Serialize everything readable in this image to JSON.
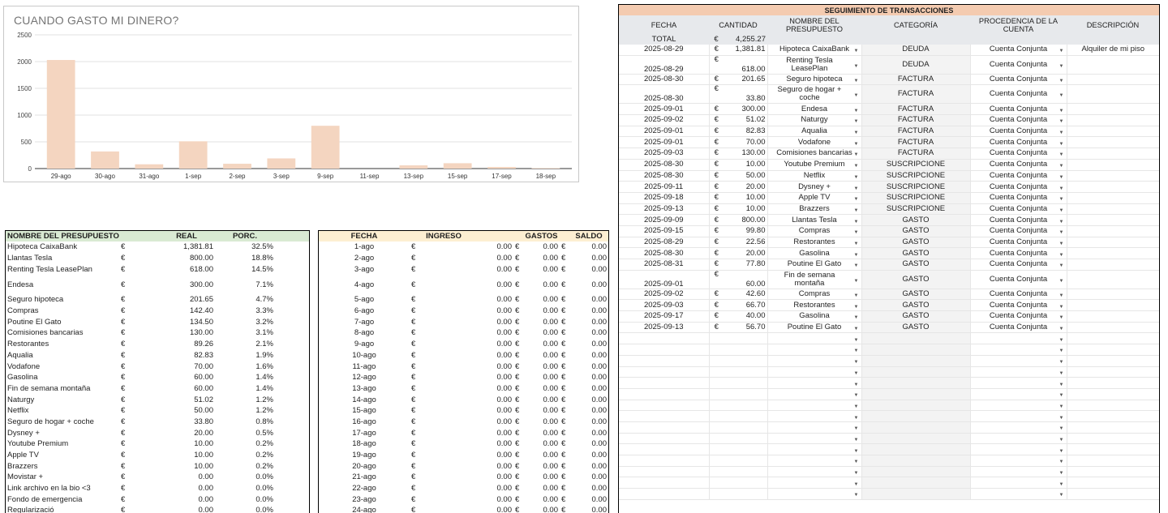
{
  "chart": {
    "title": "CUANDO GASTO MI DINERO?",
    "bar_color": "#f4d5c0",
    "chart_data": {
      "type": "bar",
      "title": "CUANDO GASTO MI DINERO?",
      "categories": [
        "29-ago",
        "30-ago",
        "31-ago",
        "1-sep",
        "2-sep",
        "3-sep",
        "9-sep",
        "11-sep",
        "13-sep",
        "15-sep",
        "17-sep",
        "18-sep"
      ],
      "values": [
        2030,
        320,
        80,
        510,
        90,
        190,
        800,
        0,
        60,
        100,
        30,
        10
      ],
      "yticks": [
        0,
        500,
        1000,
        1500,
        2000,
        2500
      ],
      "ylim": [
        0,
        2500
      ],
      "grid": true
    }
  },
  "budget": {
    "headers": [
      "NOMBRE DEL PRESUPUESTO",
      "REAL",
      "PORC."
    ],
    "currency": "€",
    "rows": [
      {
        "name": "Hipoteca CaixaBank",
        "real": "1,381.81",
        "pct": "32.5%"
      },
      {
        "name": "Llantas Tesla",
        "real": "800.00",
        "pct": "18.8%"
      },
      {
        "name": "Renting Tesla LeasePlan",
        "real": "618.00",
        "pct": "14.5%"
      },
      {
        "name": "Endesa",
        "real": "300.00",
        "pct": "7.1%",
        "tall": true
      },
      {
        "name": "Seguro hipoteca",
        "real": "201.65",
        "pct": "4.7%"
      },
      {
        "name": "Compras",
        "real": "142.40",
        "pct": "3.3%"
      },
      {
        "name": "Poutine El Gato",
        "real": "134.50",
        "pct": "3.2%"
      },
      {
        "name": "Comisiones bancarias",
        "real": "130.00",
        "pct": "3.1%"
      },
      {
        "name": "Restorantes",
        "real": "89.26",
        "pct": "2.1%"
      },
      {
        "name": "Aqualia",
        "real": "82.83",
        "pct": "1.9%"
      },
      {
        "name": "Vodafone",
        "real": "70.00",
        "pct": "1.6%"
      },
      {
        "name": "Gasolina",
        "real": "60.00",
        "pct": "1.4%"
      },
      {
        "name": "Fin de semana montaña",
        "real": "60.00",
        "pct": "1.4%"
      },
      {
        "name": "Naturgy",
        "real": "51.02",
        "pct": "1.2%"
      },
      {
        "name": "Netflix",
        "real": "50.00",
        "pct": "1.2%"
      },
      {
        "name": "Seguro de hogar + coche",
        "real": "33.80",
        "pct": "0.8%"
      },
      {
        "name": "Dysney +",
        "real": "20.00",
        "pct": "0.5%"
      },
      {
        "name": "Youtube Premium",
        "real": "10.00",
        "pct": "0.2%"
      },
      {
        "name": "Apple TV",
        "real": "10.00",
        "pct": "0.2%"
      },
      {
        "name": "Brazzers",
        "real": "10.00",
        "pct": "0.2%"
      },
      {
        "name": "Movistar +",
        "real": "0.00",
        "pct": "0.0%"
      },
      {
        "name": "Link archivo en la bio <3",
        "real": "0.00",
        "pct": "0.0%"
      },
      {
        "name": "Fondo de emergencia",
        "real": "0.00",
        "pct": "0.0%"
      },
      {
        "name": "Regularizació",
        "real": "0.00",
        "pct": "0.0%"
      }
    ]
  },
  "daily": {
    "headers": [
      "FECHA",
      "INGRESO",
      "GASTOS",
      "SALDO"
    ],
    "currency": "€",
    "rows": [
      {
        "date": "1-ago",
        "ingreso": "0.00",
        "gastos": "0.00",
        "saldo": "0.00"
      },
      {
        "date": "2-ago",
        "ingreso": "0.00",
        "gastos": "0.00",
        "saldo": "0.00"
      },
      {
        "date": "3-ago",
        "ingreso": "0.00",
        "gastos": "0.00",
        "saldo": "0.00"
      },
      {
        "date": "4-ago",
        "ingreso": "0.00",
        "gastos": "0.00",
        "saldo": "0.00",
        "tall": true
      },
      {
        "date": "5-ago",
        "ingreso": "0.00",
        "gastos": "0.00",
        "saldo": "0.00"
      },
      {
        "date": "6-ago",
        "ingreso": "0.00",
        "gastos": "0.00",
        "saldo": "0.00"
      },
      {
        "date": "7-ago",
        "ingreso": "0.00",
        "gastos": "0.00",
        "saldo": "0.00"
      },
      {
        "date": "8-ago",
        "ingreso": "0.00",
        "gastos": "0.00",
        "saldo": "0.00"
      },
      {
        "date": "9-ago",
        "ingreso": "0.00",
        "gastos": "0.00",
        "saldo": "0.00"
      },
      {
        "date": "10-ago",
        "ingreso": "0.00",
        "gastos": "0.00",
        "saldo": "0.00"
      },
      {
        "date": "11-ago",
        "ingreso": "0.00",
        "gastos": "0.00",
        "saldo": "0.00"
      },
      {
        "date": "12-ago",
        "ingreso": "0.00",
        "gastos": "0.00",
        "saldo": "0.00"
      },
      {
        "date": "13-ago",
        "ingreso": "0.00",
        "gastos": "0.00",
        "saldo": "0.00"
      },
      {
        "date": "14-ago",
        "ingreso": "0.00",
        "gastos": "0.00",
        "saldo": "0.00"
      },
      {
        "date": "15-ago",
        "ingreso": "0.00",
        "gastos": "0.00",
        "saldo": "0.00"
      },
      {
        "date": "16-ago",
        "ingreso": "0.00",
        "gastos": "0.00",
        "saldo": "0.00"
      },
      {
        "date": "17-ago",
        "ingreso": "0.00",
        "gastos": "0.00",
        "saldo": "0.00"
      },
      {
        "date": "18-ago",
        "ingreso": "0.00",
        "gastos": "0.00",
        "saldo": "0.00"
      },
      {
        "date": "19-ago",
        "ingreso": "0.00",
        "gastos": "0.00",
        "saldo": "0.00"
      },
      {
        "date": "20-ago",
        "ingreso": "0.00",
        "gastos": "0.00",
        "saldo": "0.00"
      },
      {
        "date": "21-ago",
        "ingreso": "0.00",
        "gastos": "0.00",
        "saldo": "0.00"
      },
      {
        "date": "22-ago",
        "ingreso": "0.00",
        "gastos": "0.00",
        "saldo": "0.00"
      },
      {
        "date": "23-ago",
        "ingreso": "0.00",
        "gastos": "0.00",
        "saldo": "0.00"
      },
      {
        "date": "24-ago",
        "ingreso": "0.00",
        "gastos": "0.00",
        "saldo": "0.00"
      }
    ]
  },
  "transactions": {
    "title": "SEGUIMIENTO DE TRANSACCIONES",
    "headers": [
      "FECHA",
      "CANTIDAD",
      "NOMBRE DEL PRESUPUESTO",
      "CATEGORÍA",
      "PROCEDENCIA DE LA CUENTA",
      "DESCRIPCIÓN"
    ],
    "total_label": "TOTAL",
    "total_value": "4,255.27",
    "currency": "€",
    "rows": [
      {
        "date": "2025-08-29",
        "amount": "1,381.81",
        "budget": "Hipoteca CaixaBank",
        "category": "DEUDA",
        "account": "Cuenta Conjunta",
        "desc": "Alquiler de mi piso"
      },
      {
        "date": "2025-08-29",
        "amount": "618.00",
        "budget": "Renting Tesla LeasePlan",
        "category": "DEUDA",
        "account": "Cuenta Conjunta",
        "desc": "",
        "tall": true
      },
      {
        "date": "2025-08-30",
        "amount": "201.65",
        "budget": "Seguro hipoteca",
        "category": "FACTURA",
        "account": "Cuenta Conjunta",
        "desc": ""
      },
      {
        "date": "2025-08-30",
        "amount": "33.80",
        "budget": "Seguro de hogar + coche",
        "category": "FACTURA",
        "account": "Cuenta Conjunta",
        "desc": "",
        "tall": true
      },
      {
        "date": "2025-09-01",
        "amount": "300.00",
        "budget": "Endesa",
        "category": "FACTURA",
        "account": "Cuenta Conjunta",
        "desc": ""
      },
      {
        "date": "2025-09-02",
        "amount": "51.02",
        "budget": "Naturgy",
        "category": "FACTURA",
        "account": "Cuenta Conjunta",
        "desc": ""
      },
      {
        "date": "2025-09-01",
        "amount": "82.83",
        "budget": "Aqualia",
        "category": "FACTURA",
        "account": "Cuenta Conjunta",
        "desc": ""
      },
      {
        "date": "2025-09-01",
        "amount": "70.00",
        "budget": "Vodafone",
        "category": "FACTURA",
        "account": "Cuenta Conjunta",
        "desc": ""
      },
      {
        "date": "2025-09-03",
        "amount": "130.00",
        "budget": "Comisiones bancarias",
        "category": "FACTURA",
        "account": "Cuenta Conjunta",
        "desc": ""
      },
      {
        "date": "2025-08-30",
        "amount": "10.00",
        "budget": "Youtube Premium",
        "category": "SUSCRIPCIONE",
        "account": "Cuenta Conjunta",
        "desc": ""
      },
      {
        "date": "2025-08-30",
        "amount": "50.00",
        "budget": "Netflix",
        "category": "SUSCRIPCIONE",
        "account": "Cuenta Conjunta",
        "desc": ""
      },
      {
        "date": "2025-09-11",
        "amount": "20.00",
        "budget": "Dysney +",
        "category": "SUSCRIPCIONE",
        "account": "Cuenta Conjunta",
        "desc": ""
      },
      {
        "date": "2025-09-18",
        "amount": "10.00",
        "budget": "Apple TV",
        "category": "SUSCRIPCIONE",
        "account": "Cuenta Conjunta",
        "desc": ""
      },
      {
        "date": "2025-09-13",
        "amount": "10.00",
        "budget": "Brazzers",
        "category": "SUSCRIPCIONE",
        "account": "Cuenta Conjunta",
        "desc": ""
      },
      {
        "date": "2025-09-09",
        "amount": "800.00",
        "budget": "Llantas Tesla",
        "category": "GASTO",
        "account": "Cuenta Conjunta",
        "desc": ""
      },
      {
        "date": "2025-09-15",
        "amount": "99.80",
        "budget": "Compras",
        "category": "GASTO",
        "account": "Cuenta Conjunta",
        "desc": ""
      },
      {
        "date": "2025-08-29",
        "amount": "22.56",
        "budget": "Restorantes",
        "category": "GASTO",
        "account": "Cuenta Conjunta",
        "desc": ""
      },
      {
        "date": "2025-08-30",
        "amount": "20.00",
        "budget": "Gasolina",
        "category": "GASTO",
        "account": "Cuenta Conjunta",
        "desc": ""
      },
      {
        "date": "2025-08-31",
        "amount": "77.80",
        "budget": "Poutine El Gato",
        "category": "GASTO",
        "account": "Cuenta Conjunta",
        "desc": ""
      },
      {
        "date": "2025-09-01",
        "amount": "60.00",
        "budget": "Fin de semana montaña",
        "category": "GASTO",
        "account": "Cuenta Conjunta",
        "desc": "",
        "tall": true
      },
      {
        "date": "2025-09-02",
        "amount": "42.60",
        "budget": "Compras",
        "category": "GASTO",
        "account": "Cuenta Conjunta",
        "desc": ""
      },
      {
        "date": "2025-09-03",
        "amount": "66.70",
        "budget": "Restorantes",
        "category": "GASTO",
        "account": "Cuenta Conjunta",
        "desc": ""
      },
      {
        "date": "2025-09-17",
        "amount": "40.00",
        "budget": "Gasolina",
        "category": "GASTO",
        "account": "Cuenta Conjunta",
        "desc": ""
      },
      {
        "date": "2025-09-13",
        "amount": "56.70",
        "budget": "Poutine El Gato",
        "category": "GASTO",
        "account": "Cuenta Conjunta",
        "desc": ""
      }
    ],
    "empty_rows": 15
  }
}
